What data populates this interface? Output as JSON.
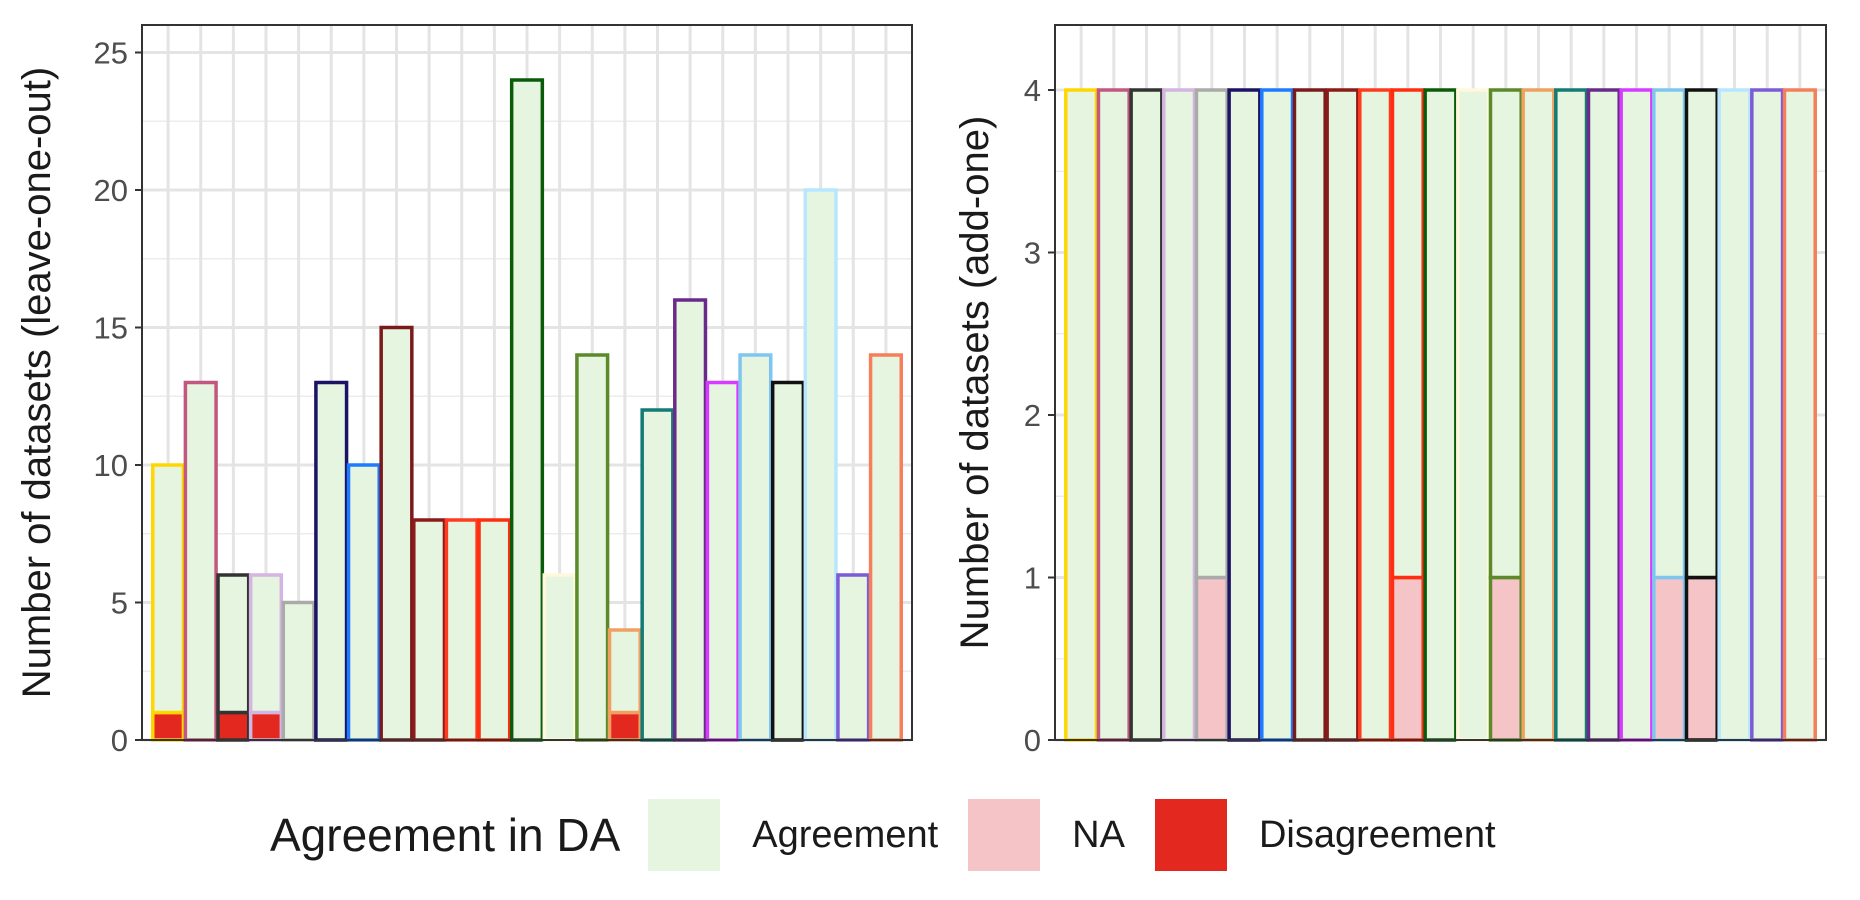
{
  "chart_data": [
    {
      "type": "bar",
      "stacked": true,
      "ylabel": "Number of datasets (leave-one-out)",
      "xlabel": "",
      "ylim": [
        0,
        26
      ],
      "yticks": [
        "0",
        "5",
        "10",
        "15",
        "20",
        "25"
      ],
      "ytick_values": [
        0,
        5,
        10,
        15,
        20,
        25
      ],
      "grid": true,
      "bar_outline_colors": [
        "#FFD700",
        "#C2577F",
        "#333333",
        "#D4B4E0",
        "#AAAAAA",
        "#1B1464",
        "#1E7BFF",
        "#7A1A1A",
        "#8B1A1A",
        "#FF3B1F",
        "#FF2E10",
        "#0A5C0A",
        "#FFF8DC",
        "#5C8A2A",
        "#F0A060",
        "#137B73",
        "#6A2A8A",
        "#D63BFF",
        "#7EC6F0",
        "#111111",
        "#B8E6FF",
        "#7B5BD6",
        "#F57F5A"
      ],
      "series": [
        {
          "name": "Agreement",
          "color": "#E5F5E0",
          "values": [
            9,
            13,
            5,
            5,
            5,
            13,
            10,
            15,
            8,
            8,
            8,
            24,
            6,
            14,
            3,
            12,
            16,
            13,
            14,
            13,
            20,
            6,
            14
          ]
        },
        {
          "name": "NA",
          "color": "#F4C4C7",
          "values": [
            0,
            0,
            0,
            0,
            0,
            0,
            0,
            0,
            0,
            0,
            0,
            0,
            0,
            0,
            0,
            0,
            0,
            0,
            0,
            0,
            0,
            0,
            0
          ]
        },
        {
          "name": "Disagreement",
          "color": "#E3281F",
          "values": [
            1,
            0,
            1,
            1,
            0,
            0,
            0,
            0,
            0,
            0,
            0,
            0,
            0,
            0,
            1,
            0,
            0,
            0,
            0,
            0,
            0,
            0,
            0
          ]
        }
      ]
    },
    {
      "type": "bar",
      "stacked": true,
      "ylabel": "Number of datasets (add-one)",
      "xlabel": "",
      "ylim": [
        0,
        4.4
      ],
      "yticks": [
        "0",
        "1",
        "2",
        "3",
        "4"
      ],
      "ytick_values": [
        0,
        1,
        2,
        3,
        4
      ],
      "grid": true,
      "bar_outline_colors": [
        "#FFD700",
        "#C2577F",
        "#333333",
        "#D4B4E0",
        "#AAAAAA",
        "#1B1464",
        "#1E7BFF",
        "#7A1A1A",
        "#8B1A1A",
        "#FF3B1F",
        "#FF2E10",
        "#0A5C0A",
        "#FFF8DC",
        "#5C8A2A",
        "#F0A060",
        "#137B73",
        "#6A2A8A",
        "#D63BFF",
        "#7EC6F0",
        "#111111",
        "#B8E6FF",
        "#7B5BD6",
        "#F57F5A"
      ],
      "series": [
        {
          "name": "Agreement",
          "color": "#E5F5E0",
          "values": [
            4,
            4,
            4,
            4,
            3,
            4,
            4,
            4,
            4,
            4,
            3,
            4,
            4,
            3,
            4,
            4,
            4,
            4,
            3,
            3,
            4,
            4,
            4
          ]
        },
        {
          "name": "NA",
          "color": "#F4C4C7",
          "values": [
            0,
            0,
            0,
            0,
            1,
            0,
            0,
            0,
            0,
            0,
            1,
            0,
            0,
            1,
            0,
            0,
            0,
            0,
            1,
            1,
            0,
            0,
            0
          ]
        },
        {
          "name": "Disagreement",
          "color": "#E3281F",
          "values": [
            0,
            0,
            0,
            0,
            0,
            0,
            0,
            0,
            0,
            0,
            0,
            0,
            0,
            0,
            0,
            0,
            0,
            0,
            0,
            0,
            0,
            0,
            0
          ]
        }
      ]
    }
  ],
  "legend": {
    "title": "Agreement in DA",
    "items": [
      {
        "label": "Agreement",
        "color": "#E5F5E0"
      },
      {
        "label": "NA",
        "color": "#F4C4C7"
      },
      {
        "label": "Disagreement",
        "color": "#E3281F"
      }
    ]
  }
}
